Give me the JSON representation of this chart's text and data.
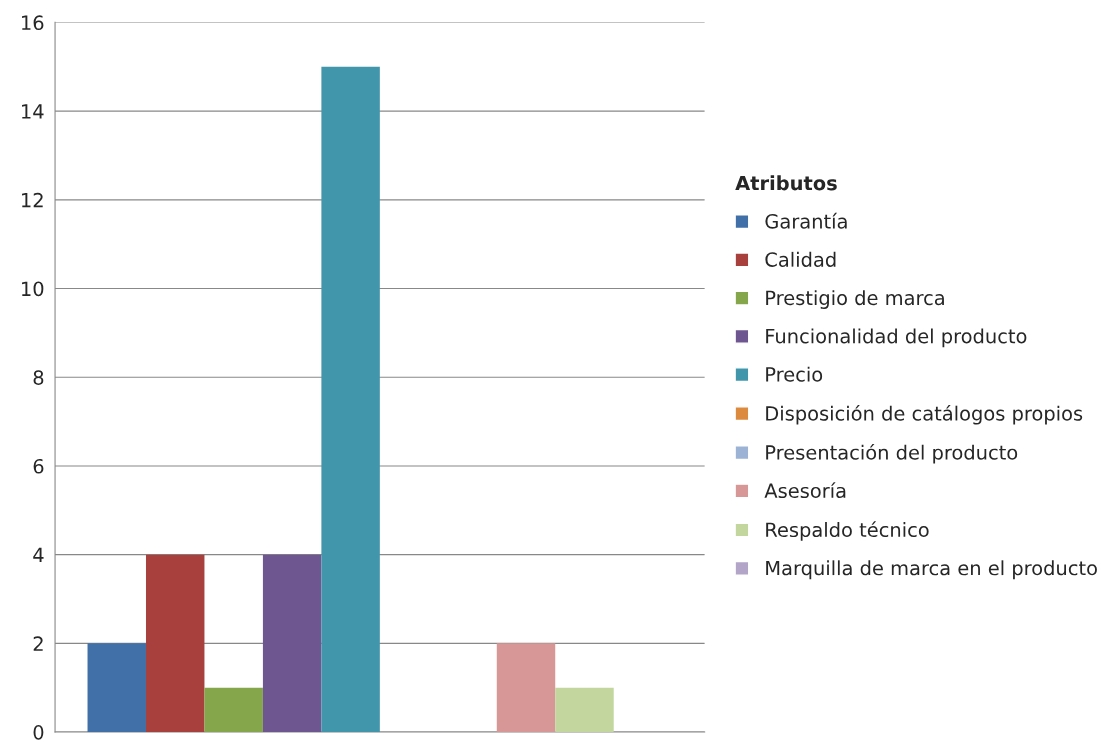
{
  "chart_data": {
    "type": "bar",
    "categories": [
      null
    ],
    "legend_title": "Atributos",
    "legend": "right",
    "ylim": [
      0,
      16
    ],
    "yticks": [
      0,
      2,
      4,
      6,
      8,
      10,
      12,
      14,
      16
    ],
    "grid": "y",
    "series": [
      {
        "name": "Garantía",
        "color": "#4170a9",
        "values": [
          2
        ]
      },
      {
        "name": "Calidad",
        "color": "#a8403e",
        "values": [
          4
        ]
      },
      {
        "name": "Prestigio de marca",
        "color": "#85a64a",
        "values": [
          1
        ]
      },
      {
        "name": "Funcionalidad del producto",
        "color": "#6e5690",
        "values": [
          4
        ]
      },
      {
        "name": "Precio",
        "color": "#4196ab",
        "values": [
          15
        ]
      },
      {
        "name": "Disposición de catálogos propios",
        "color": "#db8a3e",
        "values": [
          0
        ]
      },
      {
        "name": "Presentación del producto",
        "color": "#9cb3d6",
        "values": [
          0
        ]
      },
      {
        "name": "Asesoría",
        "color": "#d79796",
        "values": [
          2
        ]
      },
      {
        "name": "Respaldo técnico",
        "color": "#c2d69e",
        "values": [
          1
        ]
      },
      {
        "name": "Marquilla de marca en el producto",
        "color": "#b2a5c8",
        "values": [
          0
        ]
      }
    ]
  }
}
